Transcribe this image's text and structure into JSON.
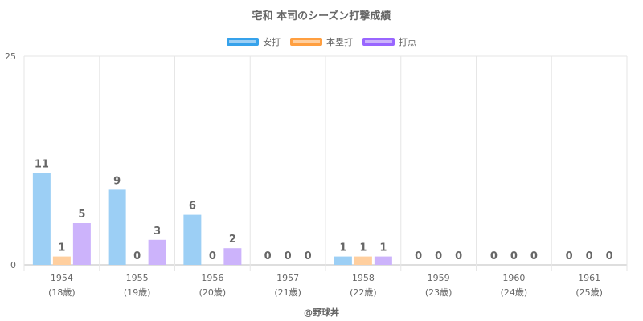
{
  "chart_data": {
    "type": "bar",
    "title": "宅和 本司のシーズン打撃成績",
    "categories": [
      "1954",
      "1955",
      "1956",
      "1957",
      "1958",
      "1959",
      "1960",
      "1961"
    ],
    "subcategories": [
      "(18歳)",
      "(19歳)",
      "(20歳)",
      "(21歳)",
      "(22歳)",
      "(23歳)",
      "(24歳)",
      "(25歳)"
    ],
    "series": [
      {
        "name": "安打",
        "values": [
          11,
          9,
          6,
          0,
          1,
          0,
          0,
          0
        ],
        "fill": "#9ccff5",
        "border": "#36a2eb"
      },
      {
        "name": "本塁打",
        "values": [
          1,
          0,
          0,
          0,
          1,
          0,
          0,
          0
        ],
        "fill": "#ffcf9f",
        "border": "#ff9f40"
      },
      {
        "name": "打点",
        "values": [
          5,
          3,
          2,
          0,
          1,
          0,
          0,
          0
        ],
        "fill": "#ccb3fb",
        "border": "#9966ff"
      }
    ],
    "ylim": [
      0,
      25
    ],
    "yticks": [
      "0",
      "25"
    ],
    "grid": true,
    "legend": "top-center",
    "data_labels": true
  },
  "watermark": "@野球丼"
}
